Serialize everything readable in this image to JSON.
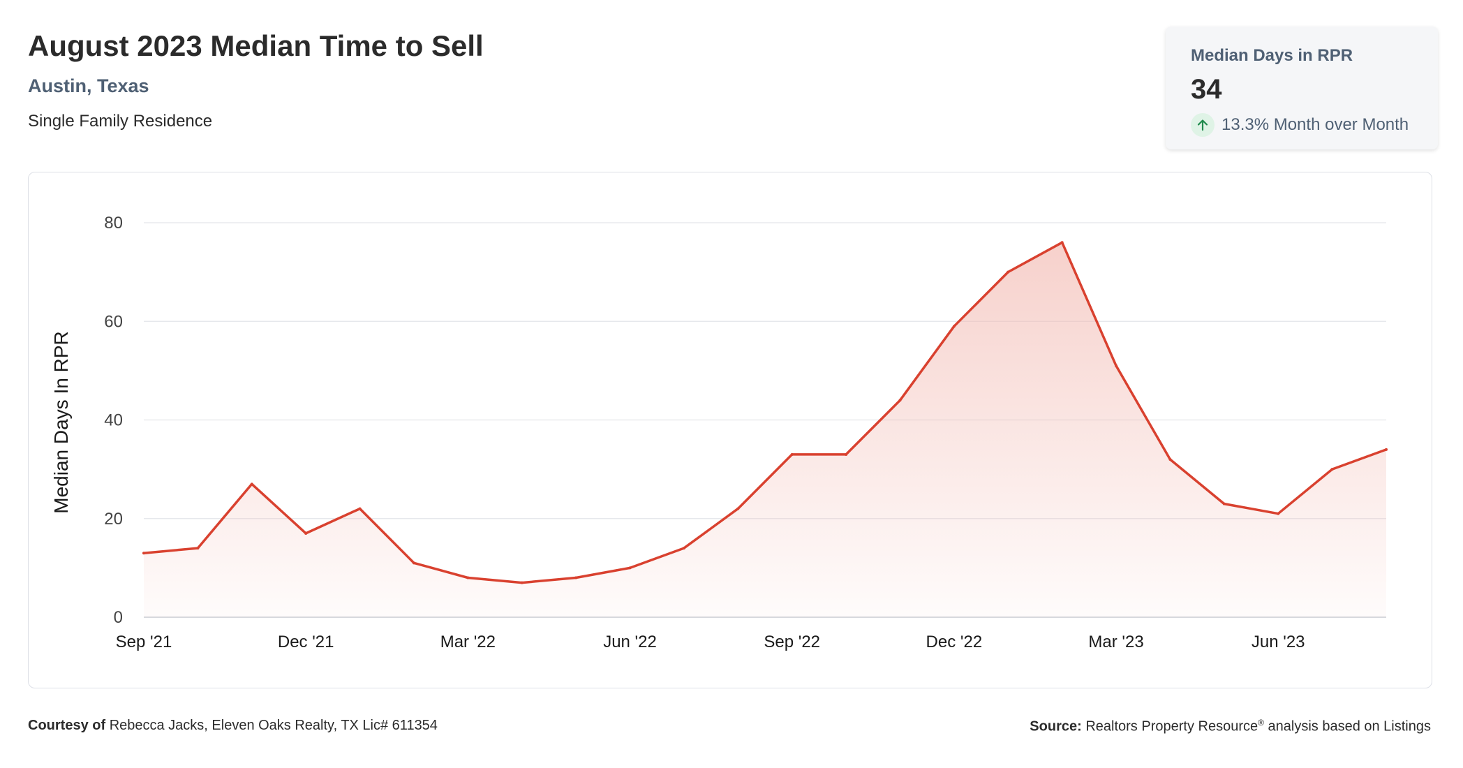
{
  "header": {
    "title": "August 2023 Median Time to Sell",
    "location": "Austin, Texas",
    "property_type": "Single Family Residence"
  },
  "kpi": {
    "label": "Median Days in RPR",
    "value": "34",
    "change_text": "13.3% Month over Month",
    "icon": "arrow-up-icon",
    "trend_color": "#1f8a4c"
  },
  "footer": {
    "courtesy_label": "Courtesy of",
    "courtesy_text": "Rebecca Jacks, Eleven Oaks Realty, TX Lic# 611354",
    "source_label": "Source:",
    "source_text_1": "Realtors Property Resource",
    "source_sup": "®",
    "source_text_2": "analysis based on Listings"
  },
  "chart_data": {
    "type": "area",
    "ylabel": "Median Days In RPR",
    "xlabel": "",
    "ylim": [
      0,
      80
    ],
    "yticks": [
      0,
      20,
      40,
      60,
      80
    ],
    "x": [
      "2021-09",
      "2021-10",
      "2021-11",
      "2021-12",
      "2022-01",
      "2022-02",
      "2022-03",
      "2022-04",
      "2022-05",
      "2022-06",
      "2022-07",
      "2022-08",
      "2022-09",
      "2022-10",
      "2022-11",
      "2022-12",
      "2023-01",
      "2023-02",
      "2023-03",
      "2023-04",
      "2023-05",
      "2023-06",
      "2023-07",
      "2023-08"
    ],
    "xtick_labels": [
      {
        "x": "2021-09",
        "label": "Sep '21"
      },
      {
        "x": "2021-12",
        "label": "Dec '21"
      },
      {
        "x": "2022-03",
        "label": "Mar '22"
      },
      {
        "x": "2022-06",
        "label": "Jun '22"
      },
      {
        "x": "2022-09",
        "label": "Sep '22"
      },
      {
        "x": "2022-12",
        "label": "Dec '22"
      },
      {
        "x": "2023-03",
        "label": "Mar '23"
      },
      {
        "x": "2023-06",
        "label": "Jun '23"
      }
    ],
    "series": [
      {
        "values": [
          13,
          14,
          27,
          17,
          22,
          11,
          8,
          7,
          8,
          10,
          14,
          22,
          33,
          33,
          44,
          59,
          70,
          76,
          51,
          32,
          23,
          21,
          30,
          34
        ],
        "color": "#d9412f"
      }
    ],
    "grid": true
  }
}
